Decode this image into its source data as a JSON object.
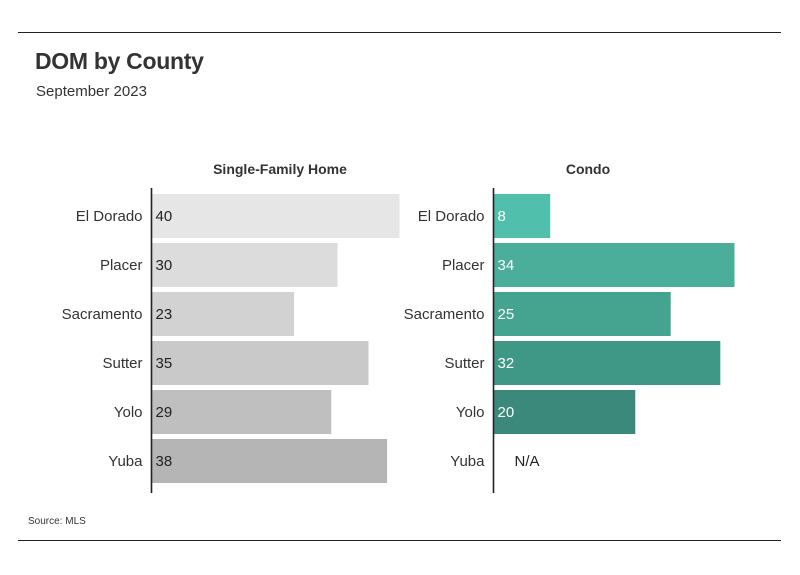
{
  "title": "DOM by County",
  "subtitle": "September 2023",
  "source": "Source: MLS",
  "chart_data": [
    {
      "type": "bar",
      "orientation": "horizontal",
      "title": "Single-Family Home",
      "categories": [
        "El Dorado",
        "Placer",
        "Sacramento",
        "Sutter",
        "Yolo",
        "Yuba"
      ],
      "values": [
        40,
        30,
        23,
        35,
        29,
        38
      ],
      "colors": [
        "#e6e6e6",
        "#dcdcdc",
        "#d2d2d2",
        "#c9c9c9",
        "#bfbfbf",
        "#b5b5b5"
      ],
      "label_color": "#222222",
      "xlim": [
        0,
        40
      ],
      "grid": false
    },
    {
      "type": "bar",
      "orientation": "horizontal",
      "title": "Condo",
      "categories": [
        "El Dorado",
        "Placer",
        "Sacramento",
        "Sutter",
        "Yolo",
        "Yuba"
      ],
      "values": [
        8,
        34,
        25,
        32,
        20,
        null
      ],
      "value_labels": [
        "8",
        "34",
        "25",
        "32",
        "20",
        "N/A"
      ],
      "colors": [
        "#50bfab",
        "#4aae9b",
        "#44a490",
        "#3f9886",
        "#3a897a",
        "#3a897a"
      ],
      "label_color": "#ffffff",
      "xlim": [
        0,
        34
      ],
      "grid": false
    }
  ]
}
